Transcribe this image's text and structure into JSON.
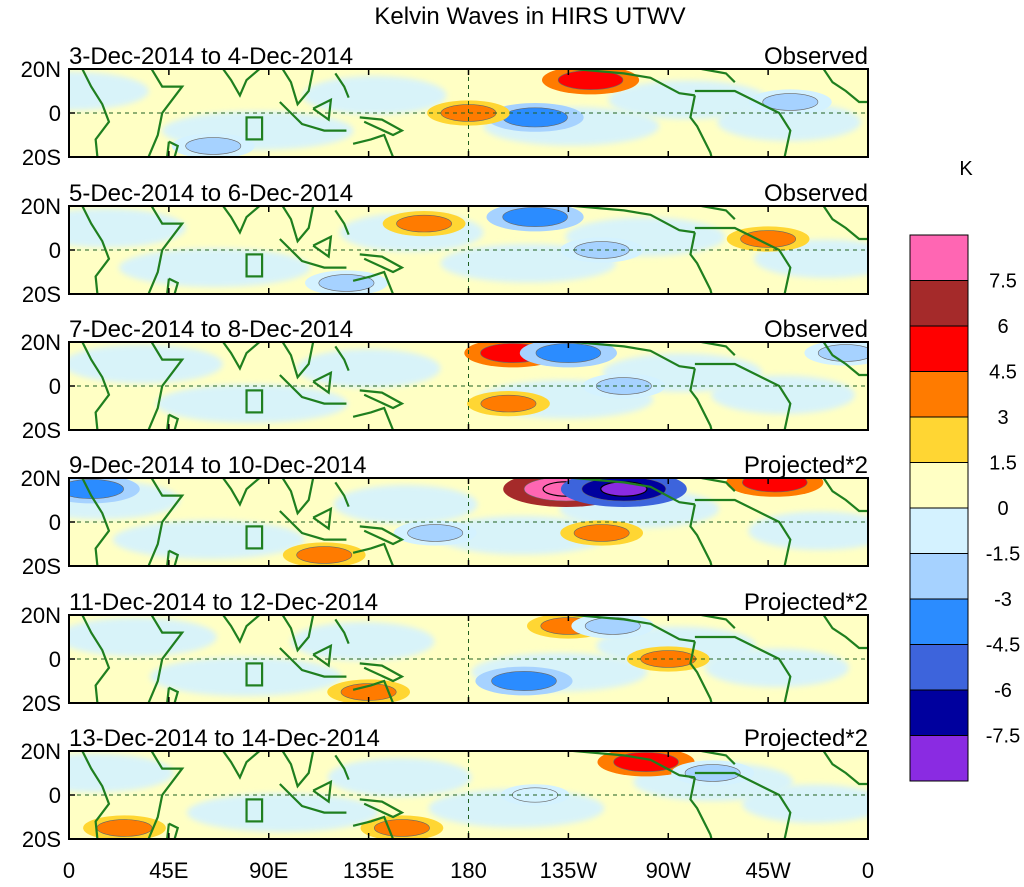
{
  "chart_data": {
    "type": "heatmap",
    "title": "Kelvin Waves in HIRS UTWV",
    "units": "K",
    "x_ticks": [
      "0",
      "45E",
      "90E",
      "135E",
      "180",
      "135W",
      "90W",
      "45W",
      "0"
    ],
    "x_tick_longitudes": [
      0,
      45,
      90,
      135,
      180,
      225,
      270,
      315,
      360
    ],
    "y_ticks": [
      "20N",
      "0",
      "20S"
    ],
    "y_tick_latitudes": [
      20,
      0,
      -20
    ],
    "xlim": [
      0,
      360
    ],
    "ylim": [
      -20,
      20
    ],
    "colorbar": {
      "levels": [
        "7.5",
        "6",
        "4.5",
        "3",
        "1.5",
        "0",
        "-1.5",
        "-3",
        "-4.5",
        "-6",
        "-7.5"
      ],
      "colors": [
        "#ff66b3",
        "#a52a2a",
        "#ff0000",
        "#ff7b00",
        "#ffd633",
        "#ffffc4",
        "#d4f2ff",
        "#a6d2ff",
        "#2b8cff",
        "#3d64dc",
        "#00009e",
        "#8a2be2"
      ]
    },
    "panels": [
      {
        "date_range": "3-Dec-2014 to 4-Dec-2014",
        "type_label": "Observed",
        "anomalies": [
          {
            "lon": 210,
            "lat": -2,
            "value": -4.5
          },
          {
            "lon": 235,
            "lat": 15,
            "value": 4.5
          },
          {
            "lon": 180,
            "lat": 0,
            "value": 3
          },
          {
            "lon": 65,
            "lat": -15,
            "value": -3
          },
          {
            "lon": 325,
            "lat": 5,
            "value": -3
          }
        ]
      },
      {
        "date_range": "5-Dec-2014 to 6-Dec-2014",
        "type_label": "Observed",
        "anomalies": [
          {
            "lon": 210,
            "lat": 15,
            "value": -4.5
          },
          {
            "lon": 125,
            "lat": -15,
            "value": -3
          },
          {
            "lon": 240,
            "lat": 0,
            "value": -3
          },
          {
            "lon": 315,
            "lat": 5,
            "value": 3
          },
          {
            "lon": 160,
            "lat": 12,
            "value": 3
          }
        ]
      },
      {
        "date_range": "7-Dec-2014 to 8-Dec-2014",
        "type_label": "Observed",
        "anomalies": [
          {
            "lon": 200,
            "lat": 15,
            "value": 4.5
          },
          {
            "lon": 225,
            "lat": 15,
            "value": -4.5
          },
          {
            "lon": 198,
            "lat": -8,
            "value": 3
          },
          {
            "lon": 250,
            "lat": 0,
            "value": -3
          },
          {
            "lon": 350,
            "lat": 15,
            "value": -3
          }
        ]
      },
      {
        "date_range": "9-Dec-2014 to 10-Dec-2014",
        "type_label": "Projected*2",
        "anomalies": [
          {
            "lon": 224,
            "lat": 15,
            "value": 7.5
          },
          {
            "lon": 250,
            "lat": 15,
            "value": -7.5
          },
          {
            "lon": 318,
            "lat": 18,
            "value": 4.5
          },
          {
            "lon": 240,
            "lat": -5,
            "value": 3
          },
          {
            "lon": 115,
            "lat": -15,
            "value": 3
          },
          {
            "lon": 10,
            "lat": 15,
            "value": -4.5
          },
          {
            "lon": 165,
            "lat": -5,
            "value": -3
          }
        ]
      },
      {
        "date_range": "11-Dec-2014 to 12-Dec-2014",
        "type_label": "Projected*2",
        "anomalies": [
          {
            "lon": 135,
            "lat": -15,
            "value": 3
          },
          {
            "lon": 225,
            "lat": 15,
            "value": 3
          },
          {
            "lon": 270,
            "lat": 0,
            "value": 3
          },
          {
            "lon": 205,
            "lat": -10,
            "value": -4.5
          },
          {
            "lon": 245,
            "lat": 15,
            "value": -3
          }
        ]
      },
      {
        "date_range": "13-Dec-2014 to 14-Dec-2014",
        "type_label": "Projected*2",
        "anomalies": [
          {
            "lon": 260,
            "lat": 15,
            "value": 4.5
          },
          {
            "lon": 150,
            "lat": -15,
            "value": 3
          },
          {
            "lon": 25,
            "lat": -15,
            "value": 3
          },
          {
            "lon": 290,
            "lat": 10,
            "value": -3
          },
          {
            "lon": 210,
            "lat": 0,
            "value": -1.5
          }
        ]
      }
    ]
  }
}
